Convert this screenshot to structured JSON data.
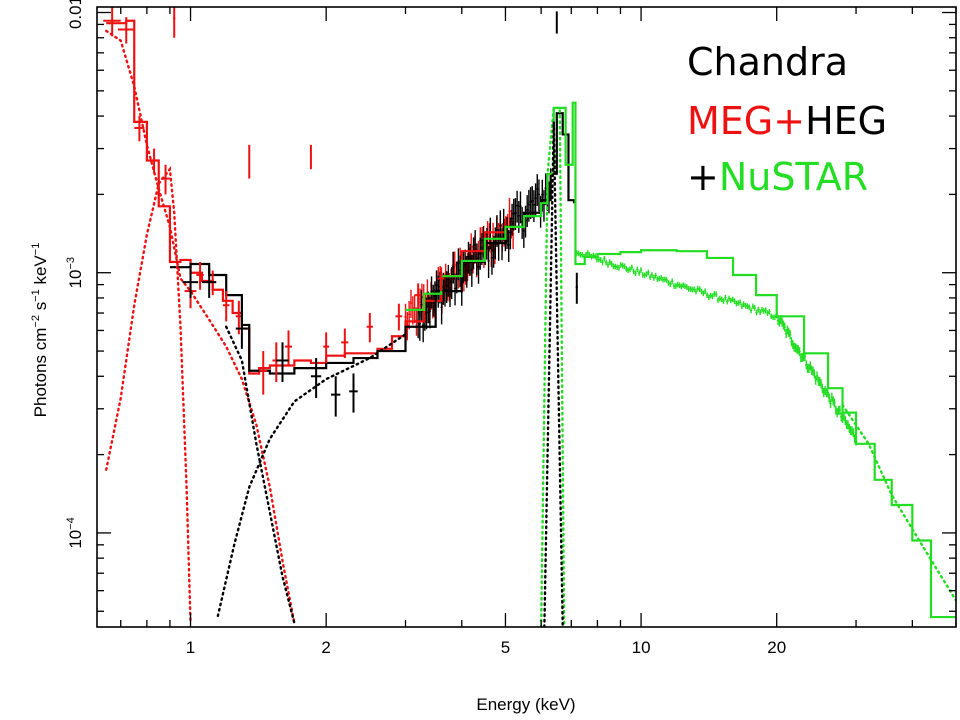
{
  "chart_data": {
    "type": "line",
    "title": "",
    "xlabel": "Energy (keV)",
    "ylabel_parts": [
      "Photons cm",
      "−2",
      " s",
      "−1",
      " keV",
      "−1"
    ],
    "x_scale": "log",
    "y_scale": "log",
    "xlim": [
      0.62,
      50
    ],
    "ylim": [
      4.35e-05,
      0.0105
    ],
    "x_ticks": [
      {
        "value": 1,
        "label": "1"
      },
      {
        "value": 2,
        "label": "2"
      },
      {
        "value": 5,
        "label": "5"
      },
      {
        "value": 10,
        "label": "10"
      },
      {
        "value": 20,
        "label": "20"
      }
    ],
    "y_ticks": [
      {
        "value": 0.01,
        "label": "0.01"
      },
      {
        "value": 0.001,
        "label_base": "10",
        "label_exp": "−3"
      },
      {
        "value": 0.0001,
        "label_base": "10",
        "label_exp": "−4"
      }
    ],
    "legend": {
      "position": "top-right",
      "lines": [
        [
          {
            "text": "Chandra",
            "color": "#000000"
          }
        ],
        [
          {
            "text": "MEG+",
            "color": "#ee1111"
          },
          {
            "text": "HEG",
            "color": "#000000"
          }
        ],
        [
          {
            "text": "+",
            "color": "#000000"
          },
          {
            "text": "NuSTAR",
            "color": "#22dd22"
          }
        ]
      ]
    },
    "colors": {
      "meg": "#ee1111",
      "heg": "#000000",
      "nustar": "#22dd22"
    },
    "series": [
      {
        "key": "meg_model",
        "color": "#ee1111",
        "style": "step",
        "points": [
          [
            0.65,
            0.0091
          ],
          [
            0.72,
            0.0093
          ],
          [
            0.75,
            0.0038
          ],
          [
            0.8,
            0.0027
          ],
          [
            0.85,
            0.0018
          ],
          [
            0.9,
            0.0011
          ],
          [
            0.95,
            0.00112
          ],
          [
            1.0,
            0.001
          ],
          [
            1.06,
            0.00093
          ],
          [
            1.12,
            0.00086
          ],
          [
            1.18,
            0.00078
          ],
          [
            1.24,
            0.0007
          ],
          [
            1.3,
            0.00061
          ],
          [
            1.35,
            0.00041
          ],
          [
            1.42,
            0.00043
          ],
          [
            1.5,
            0.00044
          ],
          [
            1.6,
            0.00044
          ],
          [
            1.7,
            0.00046
          ],
          [
            1.85,
            0.00045
          ],
          [
            2.0,
            0.00048
          ],
          [
            2.2,
            0.00049
          ],
          [
            2.4,
            0.00049
          ],
          [
            2.6,
            0.00051
          ],
          [
            2.8,
            0.00057
          ],
          [
            3.0,
            0.00065
          ],
          [
            3.3,
            0.00078
          ],
          [
            3.6,
            0.00097
          ],
          [
            4.0,
            0.00121
          ],
          [
            4.5,
            0.00143
          ],
          [
            5.0,
            0.0016
          ]
        ]
      },
      {
        "key": "heg_model",
        "color": "#000000",
        "style": "step",
        "points": [
          [
            0.9,
            0.00105
          ],
          [
            1.0,
            0.00108
          ],
          [
            1.1,
            0.00098
          ],
          [
            1.2,
            0.00082
          ],
          [
            1.3,
            0.00063
          ],
          [
            1.35,
            0.00042
          ],
          [
            1.5,
            0.00041
          ],
          [
            1.7,
            0.00043
          ],
          [
            2.0,
            0.00045
          ],
          [
            2.3,
            0.00047
          ],
          [
            2.6,
            0.0005
          ],
          [
            3.0,
            0.00062
          ],
          [
            3.5,
            0.00085
          ],
          [
            4.0,
            0.0011
          ],
          [
            4.5,
            0.0013
          ],
          [
            5.0,
            0.0015
          ],
          [
            5.5,
            0.0017
          ],
          [
            6.0,
            0.0019
          ],
          [
            6.3,
            0.0024
          ],
          [
            6.5,
            0.0041
          ],
          [
            6.7,
            0.0034
          ],
          [
            6.9,
            0.0019
          ],
          [
            7.1,
            0.00185
          ]
        ]
      },
      {
        "key": "nustar_model",
        "color": "#22dd22",
        "style": "step",
        "points": [
          [
            3.0,
            0.00072
          ],
          [
            3.3,
            0.00083
          ],
          [
            3.6,
            0.00097
          ],
          [
            4.0,
            0.00111
          ],
          [
            4.5,
            0.00135
          ],
          [
            5.0,
            0.0015
          ],
          [
            5.5,
            0.00165
          ],
          [
            6.0,
            0.00185
          ],
          [
            6.2,
            0.0024
          ],
          [
            6.4,
            0.0043
          ],
          [
            6.6,
            0.0043
          ],
          [
            6.8,
            0.0026
          ],
          [
            7.05,
            0.0045
          ],
          [
            7.15,
            0.00108
          ],
          [
            7.5,
            0.00115
          ],
          [
            8.0,
            0.00118
          ],
          [
            9.0,
            0.0012
          ],
          [
            10.0,
            0.00122
          ],
          [
            12.0,
            0.00121
          ],
          [
            14.0,
            0.00114
          ],
          [
            16.0,
            0.00098
          ],
          [
            18.0,
            0.00082
          ],
          [
            20.0,
            0.00068
          ],
          [
            23.0,
            0.00049
          ],
          [
            26.0,
            0.00036
          ],
          [
            28.0,
            0.00029
          ],
          [
            30.0,
            0.00022
          ],
          [
            33.0,
            0.00016
          ],
          [
            36.0,
            0.000128
          ],
          [
            40.0,
            9.35e-05
          ],
          [
            44.0,
            4.75e-05
          ],
          [
            50.0,
            4.75e-05
          ]
        ]
      },
      {
        "key": "meg_soft_comp",
        "color": "#ee1111",
        "style": "dotted",
        "points": [
          [
            0.65,
            0.0085
          ],
          [
            0.7,
            0.0078
          ],
          [
            0.75,
            0.0052
          ],
          [
            0.8,
            0.0031
          ],
          [
            0.85,
            0.0021
          ],
          [
            0.9,
            0.0015
          ],
          [
            0.95,
            0.00095
          ],
          [
            1.0,
            0.00085
          ],
          [
            1.1,
            0.00066
          ],
          [
            1.2,
            0.00052
          ],
          [
            1.3,
            0.00039
          ],
          [
            1.4,
            0.00026
          ],
          [
            1.5,
            0.00015
          ],
          [
            1.6,
            7.8e-05
          ],
          [
            1.7,
            4.5e-05
          ]
        ]
      },
      {
        "key": "meg_rise_comp",
        "color": "#ee1111",
        "style": "dotted",
        "points": [
          [
            0.65,
            0.000175
          ],
          [
            0.7,
            0.00033
          ],
          [
            0.75,
            0.00075
          ],
          [
            0.8,
            0.0014
          ],
          [
            0.85,
            0.0022
          ],
          [
            0.9,
            0.0025
          ],
          [
            0.92,
            0.0017
          ],
          [
            0.95,
            0.00062
          ],
          [
            0.98,
            0.00015
          ],
          [
            1.0,
            4.5e-05
          ]
        ]
      },
      {
        "key": "heg_hard_comp",
        "color": "#000000",
        "style": "dotted",
        "points": [
          [
            1.15,
            4.8e-05
          ],
          [
            1.25,
            9e-05
          ],
          [
            1.35,
            0.00015
          ],
          [
            1.5,
            0.00023
          ],
          [
            1.7,
            0.00032
          ],
          [
            2.0,
            0.00039
          ],
          [
            2.5,
            0.00047
          ],
          [
            3.0,
            0.00058
          ]
        ]
      },
      {
        "key": "heg_soft_tail",
        "color": "#000000",
        "style": "dotted",
        "points": [
          [
            1.2,
            0.00062
          ],
          [
            1.3,
            0.00046
          ],
          [
            1.4,
            0.00022
          ],
          [
            1.5,
            0.00012
          ],
          [
            1.6,
            6.8e-05
          ],
          [
            1.7,
            4.5e-05
          ]
        ]
      },
      {
        "key": "nustar_line_drop",
        "color": "#22dd22",
        "style": "dotted",
        "points": [
          [
            6.0,
            4.35e-05
          ],
          [
            6.2,
            0.0024
          ],
          [
            6.4,
            0.0043
          ],
          [
            6.6,
            0.0043
          ],
          [
            6.75,
            4.35e-05
          ]
        ]
      },
      {
        "key": "heg_line_drop",
        "color": "#000000",
        "style": "dotted",
        "points": [
          [
            6.1,
            4.35e-05
          ],
          [
            6.4,
            0.0038
          ],
          [
            6.7,
            4.35e-05
          ]
        ]
      },
      {
        "key": "nustar_powerlaw_dots",
        "color": "#22dd22",
        "style": "dotted",
        "points": [
          [
            28.0,
            0.00031
          ],
          [
            32.0,
            0.00022
          ],
          [
            36.0,
            0.00014
          ],
          [
            42.0,
            9e-05
          ],
          [
            50.0,
            5.5e-05
          ]
        ]
      }
    ],
    "error_points": [
      {
        "s": "meg",
        "x": 0.67,
        "y": 0.0093,
        "xe": 0.03,
        "ye": 0.0012
      },
      {
        "s": "meg",
        "x": 0.72,
        "y": 0.0086,
        "xe": 0.03,
        "ye": 0.001
      },
      {
        "s": "meg",
        "x": 0.77,
        "y": 0.0036,
        "xe": 0.02,
        "ye": 0.0004
      },
      {
        "s": "meg",
        "x": 0.83,
        "y": 0.0027,
        "xe": 0.02,
        "ye": 0.0003
      },
      {
        "s": "meg",
        "x": 0.88,
        "y": 0.0023,
        "xe": 0.02,
        "ye": 0.0003
      },
      {
        "s": "meg",
        "x": 0.92,
        "y": 0.0095,
        "xe": 0.005,
        "ye": 0.0015
      },
      {
        "s": "meg",
        "x": 1.0,
        "y": 0.00085,
        "xe": 0.03,
        "ye": 0.00012
      },
      {
        "s": "meg",
        "x": 1.05,
        "y": 0.00098,
        "xe": 0.02,
        "ye": 0.00012
      },
      {
        "s": "meg",
        "x": 1.12,
        "y": 0.00092,
        "xe": 0.02,
        "ye": 0.0001
      },
      {
        "s": "meg",
        "x": 1.2,
        "y": 0.00075,
        "xe": 0.02,
        "ye": 0.0001
      },
      {
        "s": "meg",
        "x": 1.28,
        "y": 0.00068,
        "xe": 0.02,
        "ye": 0.0001
      },
      {
        "s": "meg",
        "x": 1.35,
        "y": 0.0027,
        "xe": 0.005,
        "ye": 0.0004
      },
      {
        "s": "meg",
        "x": 1.45,
        "y": 0.00042,
        "xe": 0.03,
        "ye": 8e-05
      },
      {
        "s": "meg",
        "x": 1.55,
        "y": 0.00046,
        "xe": 0.03,
        "ye": 8e-05
      },
      {
        "s": "meg",
        "x": 1.65,
        "y": 0.00052,
        "xe": 0.03,
        "ye": 8e-05
      },
      {
        "s": "meg",
        "x": 1.85,
        "y": 0.0028,
        "xe": 0.005,
        "ye": 0.0003
      },
      {
        "s": "meg",
        "x": 2.0,
        "y": 0.00052,
        "xe": 0.03,
        "ye": 7e-05
      },
      {
        "s": "meg",
        "x": 2.2,
        "y": 0.00054,
        "xe": 0.04,
        "ye": 7e-05
      },
      {
        "s": "meg",
        "x": 2.5,
        "y": 0.00062,
        "xe": 0.04,
        "ye": 8e-05
      },
      {
        "s": "meg",
        "x": 2.9,
        "y": 0.00068,
        "xe": 0.05,
        "ye": 8e-05
      },
      {
        "s": "meg",
        "x": 3.2,
        "y": 0.00082,
        "xe": 0.05,
        "ye": 9e-05
      },
      {
        "s": "meg",
        "x": 3.6,
        "y": 0.00095,
        "xe": 0.06,
        "ye": 0.0001
      },
      {
        "s": "heg",
        "x": 1.0,
        "y": 0.00092,
        "xe": 0.04,
        "ye": 0.00012
      },
      {
        "s": "heg",
        "x": 1.1,
        "y": 0.00092,
        "xe": 0.04,
        "ye": 0.00012
      },
      {
        "s": "heg",
        "x": 1.3,
        "y": 0.00061,
        "xe": 0.04,
        "ye": 0.0001
      },
      {
        "s": "heg",
        "x": 1.6,
        "y": 0.00046,
        "xe": 0.05,
        "ye": 8e-05
      },
      {
        "s": "heg",
        "x": 1.9,
        "y": 0.0004,
        "xe": 0.05,
        "ye": 7e-05
      },
      {
        "s": "heg",
        "x": 2.1,
        "y": 0.00034,
        "xe": 0.05,
        "ye": 6e-05
      },
      {
        "s": "heg",
        "x": 2.3,
        "y": 0.00035,
        "xe": 0.05,
        "ye": 6e-05
      },
      {
        "s": "heg",
        "x": 6.5,
        "y": 0.0092,
        "xe": 0.01,
        "ye": 0.0009
      },
      {
        "s": "heg",
        "x": 7.2,
        "y": 0.00088,
        "xe": 0.04,
        "ye": 0.00012
      }
    ],
    "noise_bands": [
      {
        "s": "meg",
        "x0": 3.0,
        "x1": 5.2,
        "y0": 0.00065,
        "y1": 0.0016,
        "jitter": 0.25,
        "n": 60
      },
      {
        "s": "heg",
        "x0": 3.2,
        "x1": 6.3,
        "y0": 0.0007,
        "y1": 0.0021,
        "jitter": 0.28,
        "n": 80
      },
      {
        "s": "nustar",
        "x0": 7.2,
        "x1": 20.0,
        "y0": 0.0012,
        "y1": 0.00068,
        "jitter": 0.05,
        "n": 110
      },
      {
        "s": "nustar",
        "x0": 20.0,
        "x1": 30.0,
        "y0": 0.00068,
        "y1": 0.00023,
        "jitter": 0.08,
        "n": 60
      }
    ]
  }
}
